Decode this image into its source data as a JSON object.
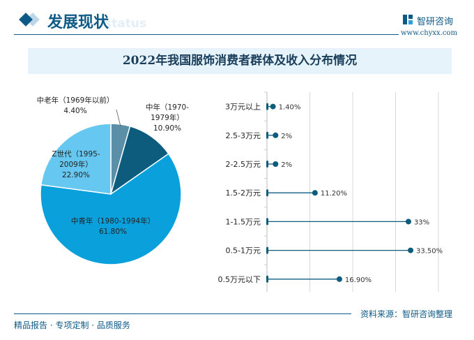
{
  "header": {
    "title": "发展现状",
    "title_en": "status",
    "brand": "智研咨询",
    "url": "www.chyxx.com"
  },
  "footer": {
    "left": "精品报告 · 专项定制 · 品质服务",
    "source": "资料来源：智研咨询整理"
  },
  "chart_data": [
    {
      "type": "pie",
      "title": "2022年我国服饰消费者群体及收入分布情况",
      "slices": [
        {
          "label": "中老年（1969年以前）",
          "value": 4.4,
          "text": "4.40%",
          "color": "#5b8fa8"
        },
        {
          "label": "中年（1970-1979年）",
          "value": 10.9,
          "text": "10.90%",
          "color": "#0d5c7e"
        },
        {
          "label": "中青年（1980-1994年）",
          "value": 61.8,
          "text": "61.80%",
          "color": "#0aa0dc"
        },
        {
          "label": "Z世代（1995-2009年）",
          "value": 22.9,
          "text": "22.90%",
          "color": "#66c8f0"
        }
      ]
    },
    {
      "type": "lollipop",
      "categories": [
        "3万元以上",
        "2.5-3万元",
        "2-2.5万元",
        "1.5-2万元",
        "1-1.5万元",
        "0.5-1万元",
        "0.5万元以下"
      ],
      "values": [
        1.4,
        2,
        2,
        11.2,
        33,
        33.5,
        16.9
      ],
      "labels": [
        "1.40%",
        "2%",
        "2%",
        "11.20%",
        "33%",
        "33.50%",
        "16.90%"
      ],
      "xlim": [
        0,
        40
      ],
      "grid": true,
      "color": "#0d5c7e"
    }
  ]
}
